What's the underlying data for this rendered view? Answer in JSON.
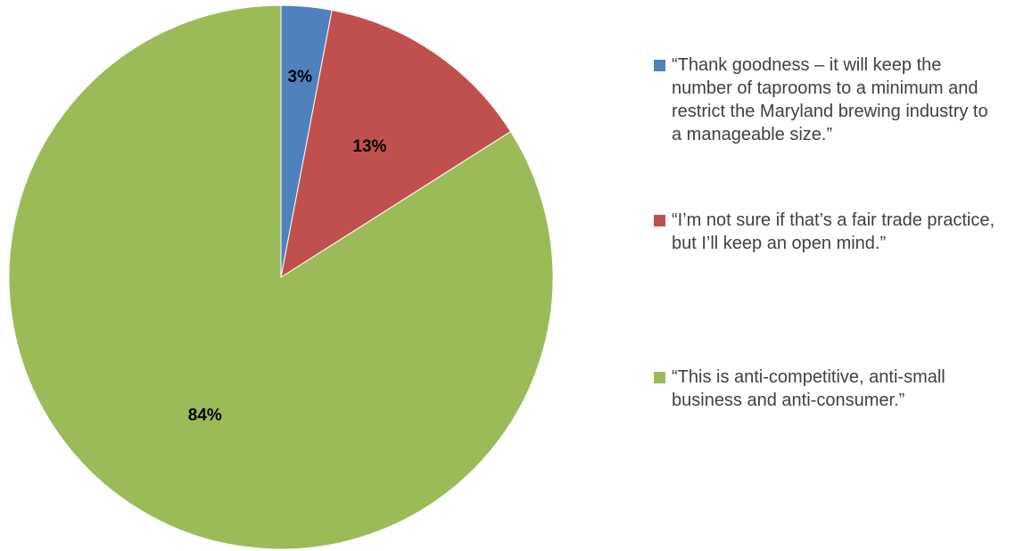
{
  "chart_data": {
    "type": "pie",
    "categories": [
      "“Thank goodness – it will keep the number of taprooms to a minimum and restrict the Maryland brewing industry to a manageable size.”",
      "“I’m not sure if that’s a fair trade practice, but I’ll keep an open mind.”",
      "“This is anti-competitive, anti-small business and anti-consumer.”"
    ],
    "values": [
      3,
      13,
      84
    ],
    "data_labels": [
      "3%",
      "13%",
      "84%"
    ],
    "colors": [
      "#4f81bd",
      "#c0504d",
      "#9bbb59"
    ],
    "legend_placement": "right"
  }
}
